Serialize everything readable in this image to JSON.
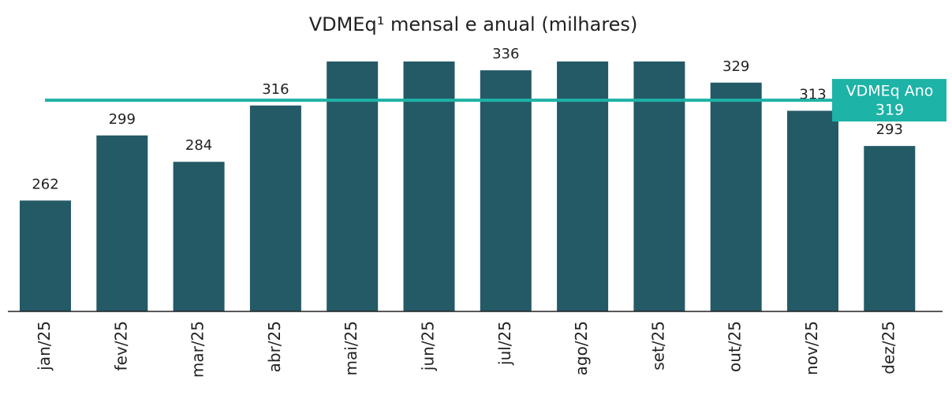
{
  "chart_data": {
    "type": "bar",
    "title": "VDMEq¹ mensal e anual (milhares)",
    "categories": [
      "jan/25",
      "fev/25",
      "mar/25",
      "abr/25",
      "mai/25",
      "jun/25",
      "jul/25",
      "ago/25",
      "set/25",
      "out/25",
      "nov/25",
      "dez/25"
    ],
    "values": [
      262,
      299,
      284,
      316,
      341,
      341,
      336,
      341,
      341,
      329,
      313,
      293
    ],
    "value_labels": [
      "262",
      "299",
      "284",
      "316",
      null,
      null,
      "336",
      null,
      null,
      "329",
      "313",
      "293"
    ],
    "color": "#235a66",
    "ylim": [
      199,
      341
    ],
    "average": {
      "label": "VDMEq Ano",
      "value": 319,
      "color": "#1db3a6"
    }
  }
}
